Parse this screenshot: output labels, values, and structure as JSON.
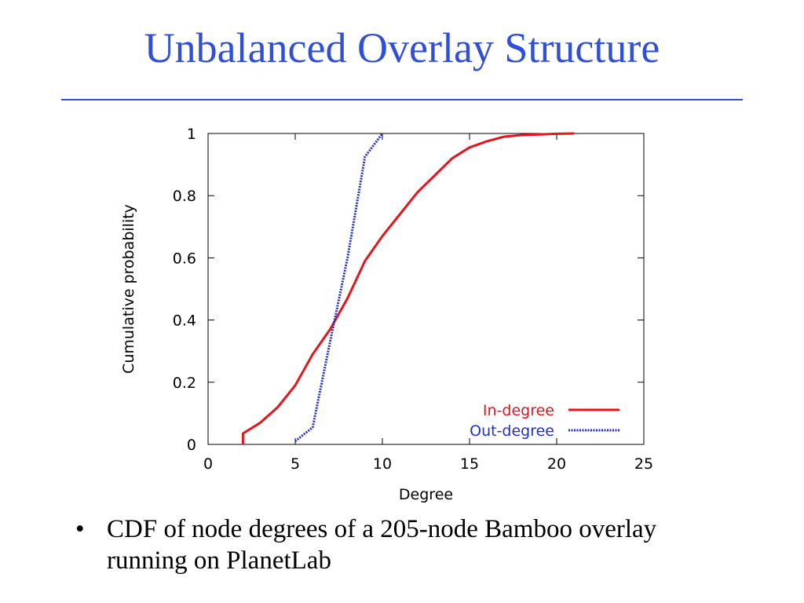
{
  "slide": {
    "title": "Unbalanced Overlay Structure",
    "bullet_symbol": "•",
    "bullet_text": "CDF of node degrees of a 205-node Bamboo overlay running on PlanetLab"
  },
  "chart_data": {
    "type": "line",
    "xlabel": "Degree",
    "ylabel": "Cumulative probability",
    "xlim": [
      0,
      25
    ],
    "ylim": [
      0,
      1
    ],
    "xticks": [
      "0",
      "5",
      "10",
      "15",
      "20",
      "25"
    ],
    "yticks": [
      "0",
      "0.2",
      "0.4",
      "0.6",
      "0.8",
      "1"
    ],
    "grid": false,
    "legend_position": "bottom-right",
    "series": [
      {
        "name": "In-degree",
        "color": "#e8141c",
        "style": "solid",
        "x": [
          2,
          2,
          3,
          4,
          5,
          6,
          7,
          8,
          9,
          10,
          11,
          12,
          13,
          14,
          15,
          16,
          17,
          18,
          19,
          20,
          21
        ],
        "y": [
          0,
          0.035,
          0.07,
          0.12,
          0.19,
          0.29,
          0.37,
          0.47,
          0.59,
          0.67,
          0.74,
          0.81,
          0.865,
          0.92,
          0.955,
          0.975,
          0.99,
          0.995,
          0.997,
          0.999,
          1.0
        ]
      },
      {
        "name": "Out-degree",
        "color": "#1f2fd8",
        "style": "dotted",
        "x": [
          5,
          6,
          7,
          8,
          9,
          10
        ],
        "y": [
          0.01,
          0.055,
          0.33,
          0.6,
          0.925,
          1.0
        ]
      }
    ]
  }
}
